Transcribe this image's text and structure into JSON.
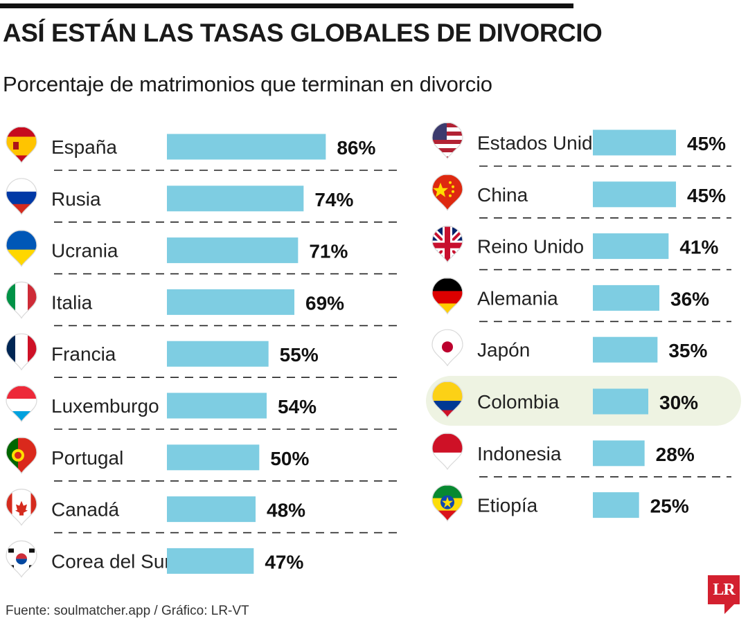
{
  "title": "ASÍ ESTÁN LAS TASAS GLOBALES DE DIVORCIO",
  "subtitle": "Porcentaje de matrimonios que terminan en divorcio",
  "source": "Fuente: soulmatcher.app / Gráfico: LR-VT",
  "logo": "LR",
  "colors": {
    "bar": "#7ecde2",
    "highlight": "#eef3e2",
    "divider": "#222222"
  },
  "chart_data": {
    "type": "bar",
    "orientation": "horizontal",
    "title": "ASÍ ESTÁN LAS TASAS GLOBALES DE DIVORCIO",
    "subtitle": "Porcentaje de matrimonios que terminan en divorcio",
    "unit": "%",
    "highlighted": "Colombia",
    "categories": [
      "España",
      "Rusia",
      "Ucrania",
      "Italia",
      "Francia",
      "Luxemburgo",
      "Portugal",
      "Canadá",
      "Corea del Sur",
      "Estados Unidos",
      "China",
      "Reino Unido",
      "Alemania",
      "Japón",
      "Colombia",
      "Indonesia",
      "Etiopía"
    ],
    "values": [
      86,
      74,
      71,
      69,
      55,
      54,
      50,
      48,
      47,
      45,
      45,
      41,
      36,
      35,
      30,
      28,
      25
    ],
    "value_labels": [
      "86%",
      "74%",
      "71%",
      "69%",
      "55%",
      "54%",
      "50%",
      "48%",
      "47%",
      "45%",
      "45%",
      "41%",
      "36%",
      "35%",
      "30%",
      "28%",
      "25%"
    ],
    "flags": [
      "flag-spain",
      "flag-russia",
      "flag-ukraine",
      "flag-italy",
      "flag-france",
      "flag-luxembourg",
      "flag-portugal",
      "flag-canada",
      "flag-south-korea",
      "flag-usa",
      "flag-china",
      "flag-uk",
      "flag-germany",
      "flag-japan",
      "flag-colombia",
      "flag-indonesia",
      "flag-ethiopia"
    ]
  }
}
